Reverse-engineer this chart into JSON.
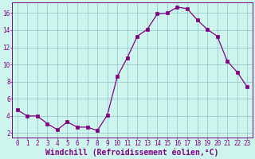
{
  "x": [
    0,
    1,
    2,
    3,
    4,
    5,
    6,
    7,
    8,
    9,
    10,
    11,
    12,
    13,
    14,
    15,
    16,
    17,
    18,
    19,
    20,
    21,
    22,
    23
  ],
  "y": [
    4.7,
    4.0,
    4.0,
    3.1,
    2.4,
    3.3,
    2.7,
    2.7,
    2.3,
    4.1,
    8.6,
    10.8,
    13.3,
    14.1,
    15.9,
    16.0,
    16.7,
    16.5,
    15.2,
    14.1,
    13.3,
    10.4,
    9.1,
    7.4
  ],
  "line_color": "#800080",
  "marker": "s",
  "marker_size": 2.2,
  "bg_color": "#cdf5ee",
  "grid_color": "#99cccc",
  "xlabel": "Windchill (Refroidissement éolien,°C)",
  "xlabel_fontsize": 7.0,
  "xlabel_color": "#800080",
  "xlabel_weight": "bold",
  "ylim": [
    1.5,
    17.2
  ],
  "xlim": [
    -0.5,
    23.5
  ],
  "yticks": [
    2,
    4,
    6,
    8,
    10,
    12,
    14,
    16
  ],
  "ytick_labels": [
    "2",
    "4",
    "6",
    "8",
    "10",
    "12",
    "14",
    "16"
  ],
  "xticks": [
    0,
    1,
    2,
    3,
    4,
    5,
    6,
    7,
    8,
    9,
    10,
    11,
    12,
    13,
    14,
    15,
    16,
    17,
    18,
    19,
    20,
    21,
    22,
    23
  ],
  "tick_color": "#800080",
  "tick_fontsize": 5.5,
  "spine_color": "#800080",
  "linewidth": 0.9
}
